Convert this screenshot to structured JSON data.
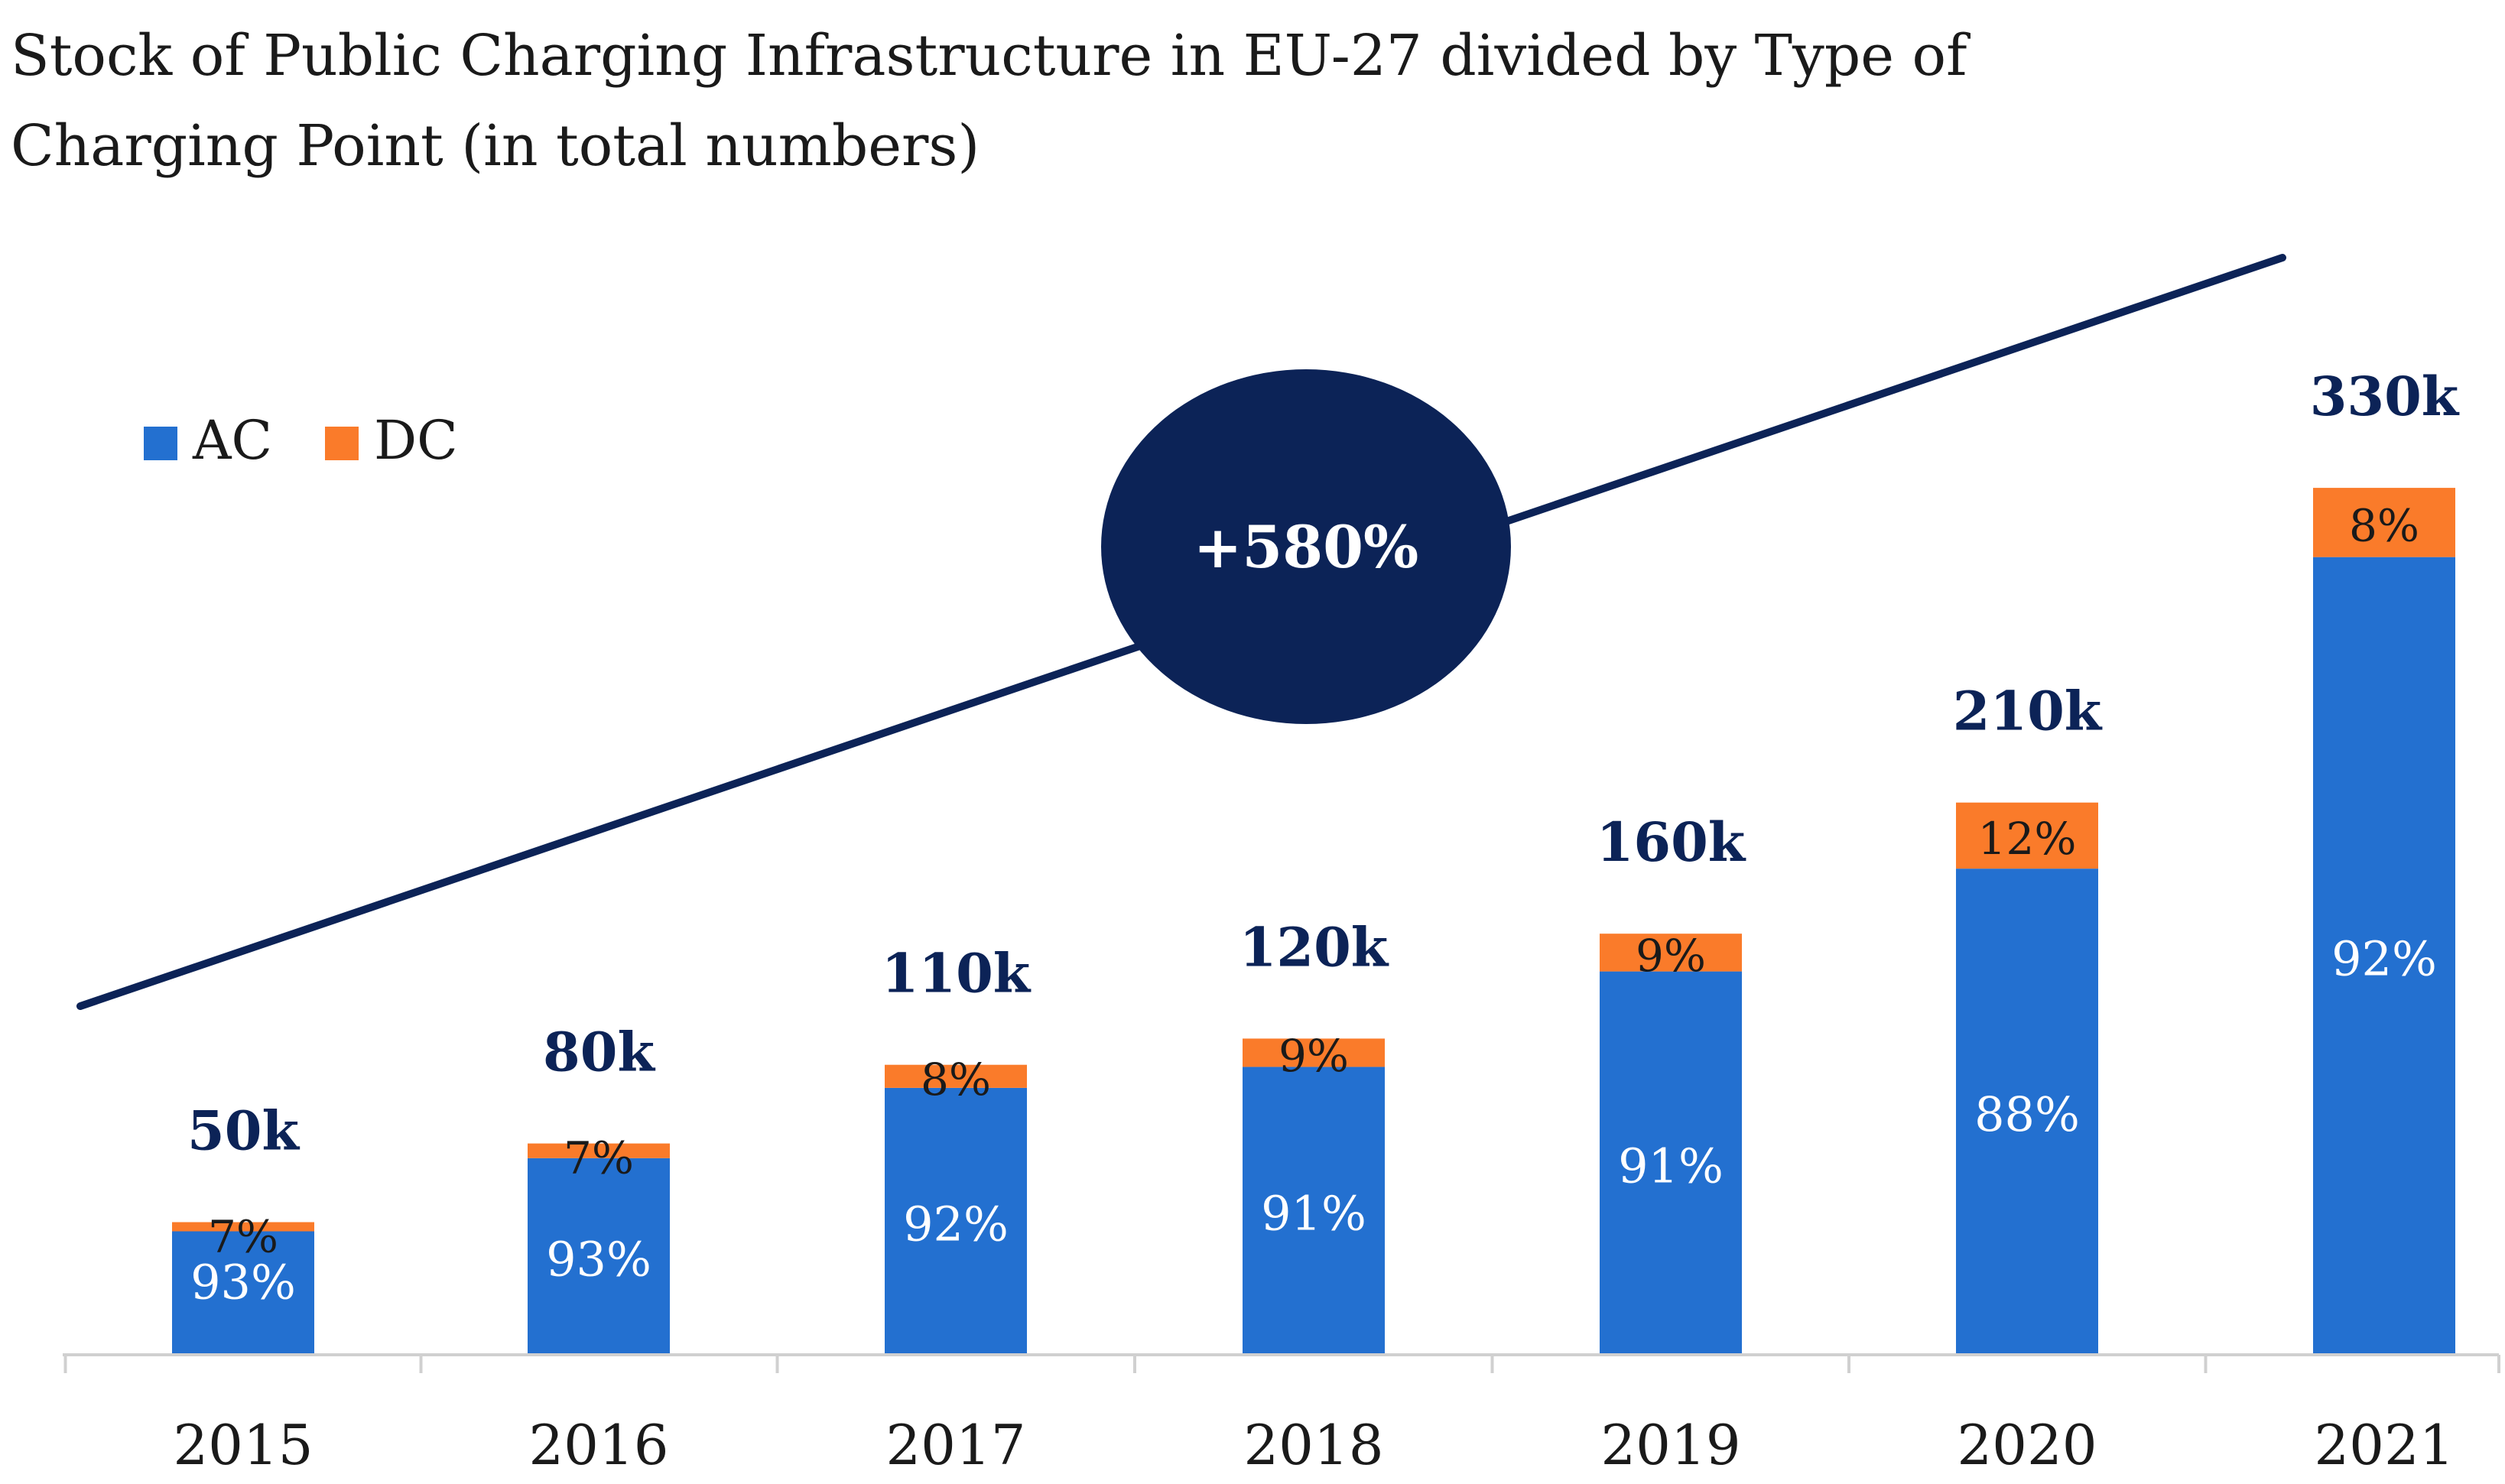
{
  "chart_data": {
    "type": "bar",
    "stacked": true,
    "title": "Stock of Public Charging Infrastructure in EU-27 divided by Type of Charging Point (in total numbers)",
    "xlabel": "",
    "ylabel": "",
    "categories": [
      "2015",
      "2016",
      "2017",
      "2018",
      "2019",
      "2020",
      "2021"
    ],
    "totals": [
      50,
      80,
      110,
      120,
      160,
      210,
      330
    ],
    "total_labels": [
      "50k",
      "80k",
      "110k",
      "120k",
      "160k",
      "210k",
      "330k"
    ],
    "series": [
      {
        "name": "AC",
        "color": "#2370d0",
        "shares": [
          93,
          93,
          92,
          91,
          91,
          88,
          92
        ],
        "labels": [
          "93%",
          "93%",
          "92%",
          "91%",
          "91%",
          "88%",
          "92%"
        ]
      },
      {
        "name": "DC",
        "color": "#fa7b2a",
        "shares": [
          7,
          7,
          8,
          9,
          9,
          12,
          8
        ],
        "labels": [
          "7%",
          "7%",
          "8%",
          "9%",
          "9%",
          "12%",
          "8%"
        ]
      }
    ],
    "legend": {
      "position": "top-left",
      "entries": [
        "AC",
        "DC"
      ]
    },
    "ylim": [
      0,
      330
    ],
    "grid": false,
    "trend_annotation": {
      "label": "+580%",
      "color": "#0c2357"
    }
  }
}
